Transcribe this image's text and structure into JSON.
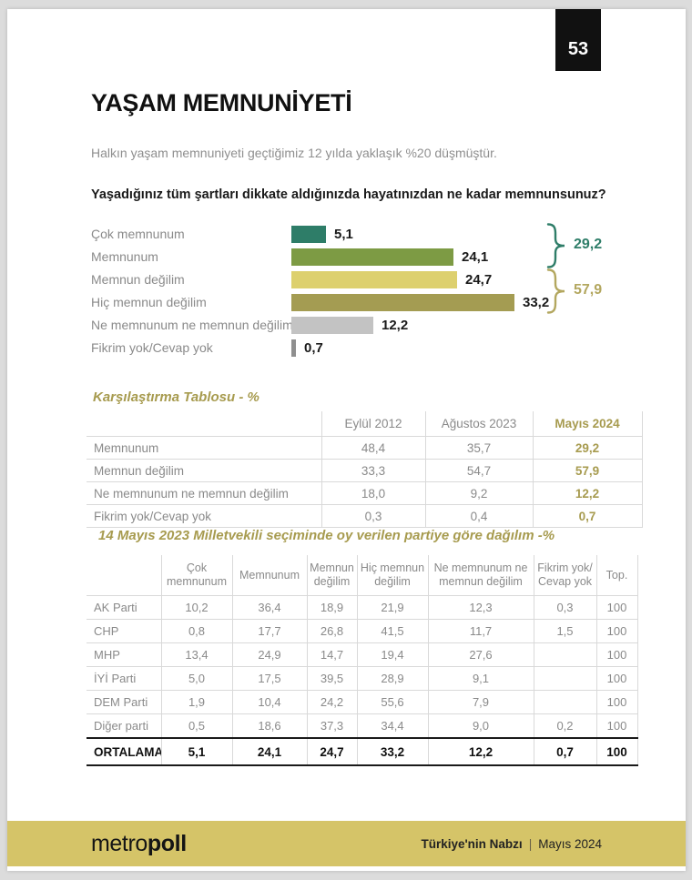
{
  "page": {
    "number": "53"
  },
  "header": {
    "title": "YAŞAM MEMNUNİYETİ",
    "subtitle": "Halkın yaşam memnuniyeti geçtiğimiz 12 yılda yaklaşık %20 düşmüştür.",
    "question": "Yaşadığınız tüm şartları dikkate aldığınızda hayatınızdan ne kadar memnunsunuz?"
  },
  "chart_data": {
    "type": "bar",
    "orientation": "horizontal",
    "categories": [
      "Çok memnunum",
      "Memnunum",
      "Memnun değilim",
      "Hiç memnun değilim",
      "Ne memnunum ne memnun değilim",
      "Fikrim yok/Cevap yok"
    ],
    "values": [
      5.1,
      24.1,
      24.7,
      33.2,
      12.2,
      0.7
    ],
    "value_labels": [
      "5,1",
      "24,1",
      "24,7",
      "33,2",
      "12,2",
      "0,7"
    ],
    "bar_colors": [
      "#2e7d68",
      "#7d9b44",
      "#ddd06e",
      "#a49c52",
      "#c3c3c3",
      "#8f8f8f"
    ],
    "xlim": [
      0,
      35
    ],
    "grid": false,
    "groups": [
      {
        "label": "29,2",
        "value": 29.2,
        "color": "#2e7d68",
        "spans": [
          "Çok memnunum",
          "Memnunum"
        ]
      },
      {
        "label": "57,9",
        "value": 57.9,
        "color": "#b3a75f",
        "spans": [
          "Memnun değilim",
          "Hiç memnun değilim"
        ]
      }
    ]
  },
  "comparison_table": {
    "title": "Karşılaştırma Tablosu - %",
    "columns": [
      "",
      "Eylül 2012",
      "Ağustos 2023",
      "Mayıs 2024"
    ],
    "highlight_column": "Mayıs 2024",
    "rows": [
      {
        "label": "Memnunum",
        "values": [
          "48,4",
          "35,7",
          "29,2"
        ]
      },
      {
        "label": "Memnun değilim",
        "values": [
          "33,3",
          "54,7",
          "57,9"
        ]
      },
      {
        "label": "Ne memnunum ne memnun değilim",
        "values": [
          "18,0",
          "9,2",
          "12,2"
        ]
      },
      {
        "label": "Fikrim yok/Cevap yok",
        "values": [
          "0,3",
          "0,4",
          "0,7"
        ]
      }
    ]
  },
  "party_table": {
    "title": "14 Mayıs 2023 Milletvekili seçiminde oy verilen partiye göre dağılım -%",
    "columns": [
      "",
      "Çok memnunum",
      "Memnunum",
      "Memnun değilim",
      "Hiç memnun değilim",
      "Ne memnunum ne memnun değilim",
      "Fikrim yok/ Cevap yok",
      "Top."
    ],
    "rows": [
      {
        "label": "AK Parti",
        "values": [
          "10,2",
          "36,4",
          "18,9",
          "21,9",
          "12,3",
          "0,3",
          "100"
        ],
        "bold": false
      },
      {
        "label": "CHP",
        "values": [
          "0,8",
          "17,7",
          "26,8",
          "41,5",
          "11,7",
          "1,5",
          "100"
        ],
        "bold": false
      },
      {
        "label": "MHP",
        "values": [
          "13,4",
          "24,9",
          "14,7",
          "19,4",
          "27,6",
          "",
          "100"
        ],
        "bold": false
      },
      {
        "label": "İYİ Parti",
        "values": [
          "5,0",
          "17,5",
          "39,5",
          "28,9",
          "9,1",
          "",
          "100"
        ],
        "bold": false
      },
      {
        "label": "DEM Parti",
        "values": [
          "1,9",
          "10,4",
          "24,2",
          "55,6",
          "7,9",
          "",
          "100"
        ],
        "bold": false
      },
      {
        "label": "Diğer parti",
        "values": [
          "0,5",
          "18,6",
          "37,3",
          "34,4",
          "9,0",
          "0,2",
          "100"
        ],
        "bold": false
      },
      {
        "label": "ORTALAMA",
        "values": [
          "5,1",
          "24,1",
          "24,7",
          "33,2",
          "12,2",
          "0,7",
          "100"
        ],
        "bold": true
      }
    ]
  },
  "footer": {
    "logo_regular": "metro",
    "logo_bold": "poll",
    "title_bold": "Türkiye'nin Nabzı",
    "separator": "|",
    "date": "Mayıs 2024",
    "bar_color": "#d5c468"
  },
  "colors": {
    "accent_olive": "#a79b4f",
    "accent_teal": "#2e7d68",
    "page_number_bg": "#111111",
    "table_line": "#d9d9d9"
  }
}
